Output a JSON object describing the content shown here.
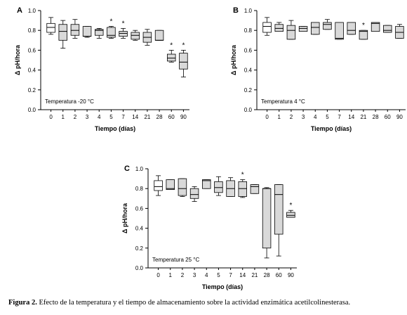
{
  "caption": {
    "label": "Figura 2.",
    "text": "Efecto de la temperatura y el tiempo de almacenamiento sobre la actividad enzimática acetilcolinesterasa."
  },
  "colors": {
    "reference_box": "#ffffff",
    "sample_box": "#d9d9d9",
    "stroke": "#000000"
  },
  "chart_data": [
    {
      "type": "box",
      "panel": "A",
      "annotation": "Temperatura -20 °C",
      "xlabel": "Tiempo (días)",
      "ylabel": "Δ pH/hora",
      "ylim": [
        0.0,
        1.0
      ],
      "yticks": [
        "0.0",
        "0.2",
        "0.4",
        "0.6",
        "0.8",
        "1.0"
      ],
      "categories": [
        "0",
        "1",
        "2",
        "3",
        "4",
        "5",
        "7",
        "14",
        "21",
        "28",
        "60",
        "90"
      ],
      "boxes": [
        {
          "min": 0.76,
          "q1": 0.78,
          "median": 0.83,
          "q3": 0.87,
          "max": 0.93,
          "sig": false
        },
        {
          "min": 0.62,
          "q1": 0.7,
          "median": 0.79,
          "q3": 0.86,
          "max": 0.9,
          "sig": false
        },
        {
          "min": 0.72,
          "q1": 0.75,
          "median": 0.8,
          "q3": 0.86,
          "max": 0.91,
          "sig": false
        },
        {
          "min": 0.73,
          "q1": 0.74,
          "median": 0.74,
          "q3": 0.84,
          "max": 0.84,
          "sig": false
        },
        {
          "min": 0.72,
          "q1": 0.75,
          "median": 0.8,
          "q3": 0.81,
          "max": 0.82,
          "sig": false
        },
        {
          "min": 0.72,
          "q1": 0.73,
          "median": 0.75,
          "q3": 0.83,
          "max": 0.84,
          "sig": true
        },
        {
          "min": 0.72,
          "q1": 0.74,
          "median": 0.77,
          "q3": 0.79,
          "max": 0.82,
          "sig": true
        },
        {
          "min": 0.7,
          "q1": 0.71,
          "median": 0.75,
          "q3": 0.78,
          "max": 0.8,
          "sig": false
        },
        {
          "min": 0.65,
          "q1": 0.68,
          "median": 0.73,
          "q3": 0.78,
          "max": 0.81,
          "sig": false
        },
        {
          "min": 0.7,
          "q1": 0.7,
          "median": 0.7,
          "q3": 0.8,
          "max": 0.8,
          "sig": false
        },
        {
          "min": 0.48,
          "q1": 0.49,
          "median": 0.52,
          "q3": 0.56,
          "max": 0.6,
          "sig": true
        },
        {
          "min": 0.33,
          "q1": 0.41,
          "median": 0.48,
          "q3": 0.57,
          "max": 0.6,
          "sig": true
        }
      ]
    },
    {
      "type": "box",
      "panel": "B",
      "annotation": "Temperatura 4 °C",
      "xlabel": "Tiempo (días)",
      "ylabel": "Δ pH/hora",
      "ylim": [
        0.0,
        1.0
      ],
      "yticks": [
        "0.0",
        "0.2",
        "0.4",
        "0.6",
        "0.8",
        "1.0"
      ],
      "categories": [
        "0",
        "1",
        "2",
        "3",
        "4",
        "5",
        "7",
        "14",
        "21",
        "28",
        "60",
        "90"
      ],
      "boxes": [
        {
          "min": 0.75,
          "q1": 0.78,
          "median": 0.84,
          "q3": 0.88,
          "max": 0.93,
          "sig": false
        },
        {
          "min": 0.79,
          "q1": 0.79,
          "median": 0.82,
          "q3": 0.86,
          "max": 0.88,
          "sig": false
        },
        {
          "min": 0.71,
          "q1": 0.71,
          "median": 0.8,
          "q3": 0.85,
          "max": 0.9,
          "sig": false
        },
        {
          "min": 0.79,
          "q1": 0.79,
          "median": 0.82,
          "q3": 0.84,
          "max": 0.84,
          "sig": false
        },
        {
          "min": 0.76,
          "q1": 0.76,
          "median": 0.83,
          "q3": 0.88,
          "max": 0.88,
          "sig": false
        },
        {
          "min": 0.81,
          "q1": 0.81,
          "median": 0.86,
          "q3": 0.88,
          "max": 0.91,
          "sig": false
        },
        {
          "min": 0.71,
          "q1": 0.71,
          "median": 0.72,
          "q3": 0.88,
          "max": 0.88,
          "sig": false
        },
        {
          "min": 0.76,
          "q1": 0.76,
          "median": 0.8,
          "q3": 0.88,
          "max": 0.88,
          "sig": false
        },
        {
          "min": 0.71,
          "q1": 0.71,
          "median": 0.79,
          "q3": 0.8,
          "max": 0.8,
          "sig": true
        },
        {
          "min": 0.79,
          "q1": 0.79,
          "median": 0.87,
          "q3": 0.88,
          "max": 0.88,
          "sig": false
        },
        {
          "min": 0.78,
          "q1": 0.78,
          "median": 0.8,
          "q3": 0.85,
          "max": 0.85,
          "sig": false
        },
        {
          "min": 0.72,
          "q1": 0.72,
          "median": 0.78,
          "q3": 0.84,
          "max": 0.86,
          "sig": false
        }
      ]
    },
    {
      "type": "box",
      "panel": "C",
      "annotation": "Temperatura 25 °C",
      "xlabel": "Tiempo (días)",
      "ylabel": "Δ pH/hora",
      "ylim": [
        0.0,
        1.0
      ],
      "yticks": [
        "0.0",
        "0.2",
        "0.4",
        "0.6",
        "0.8",
        "1.0"
      ],
      "categories": [
        "0",
        "1",
        "2",
        "3",
        "4",
        "5",
        "7",
        "14",
        "21",
        "28",
        "60",
        "90"
      ],
      "boxes": [
        {
          "min": 0.73,
          "q1": 0.78,
          "median": 0.82,
          "q3": 0.88,
          "max": 0.93,
          "sig": false
        },
        {
          "min": 0.79,
          "q1": 0.79,
          "median": 0.8,
          "q3": 0.89,
          "max": 0.89,
          "sig": false
        },
        {
          "min": 0.72,
          "q1": 0.73,
          "median": 0.8,
          "q3": 0.9,
          "max": 0.9,
          "sig": false
        },
        {
          "min": 0.67,
          "q1": 0.7,
          "median": 0.74,
          "q3": 0.8,
          "max": 0.82,
          "sig": false
        },
        {
          "min": 0.8,
          "q1": 0.8,
          "median": 0.88,
          "q3": 0.89,
          "max": 0.89,
          "sig": false
        },
        {
          "min": 0.73,
          "q1": 0.76,
          "median": 0.81,
          "q3": 0.87,
          "max": 0.92,
          "sig": false
        },
        {
          "min": 0.72,
          "q1": 0.72,
          "median": 0.8,
          "q3": 0.88,
          "max": 0.91,
          "sig": false
        },
        {
          "min": 0.71,
          "q1": 0.72,
          "median": 0.8,
          "q3": 0.87,
          "max": 0.89,
          "sig": true
        },
        {
          "min": 0.75,
          "q1": 0.75,
          "median": 0.82,
          "q3": 0.84,
          "max": 0.84,
          "sig": false
        },
        {
          "min": 0.1,
          "q1": 0.2,
          "median": 0.8,
          "q3": 0.8,
          "max": 0.81,
          "sig": false
        },
        {
          "min": 0.12,
          "q1": 0.34,
          "median": 0.74,
          "q3": 0.84,
          "max": 0.84,
          "sig": false
        },
        {
          "min": 0.51,
          "q1": 0.51,
          "median": 0.53,
          "q3": 0.56,
          "max": 0.58,
          "sig": true
        }
      ]
    }
  ]
}
